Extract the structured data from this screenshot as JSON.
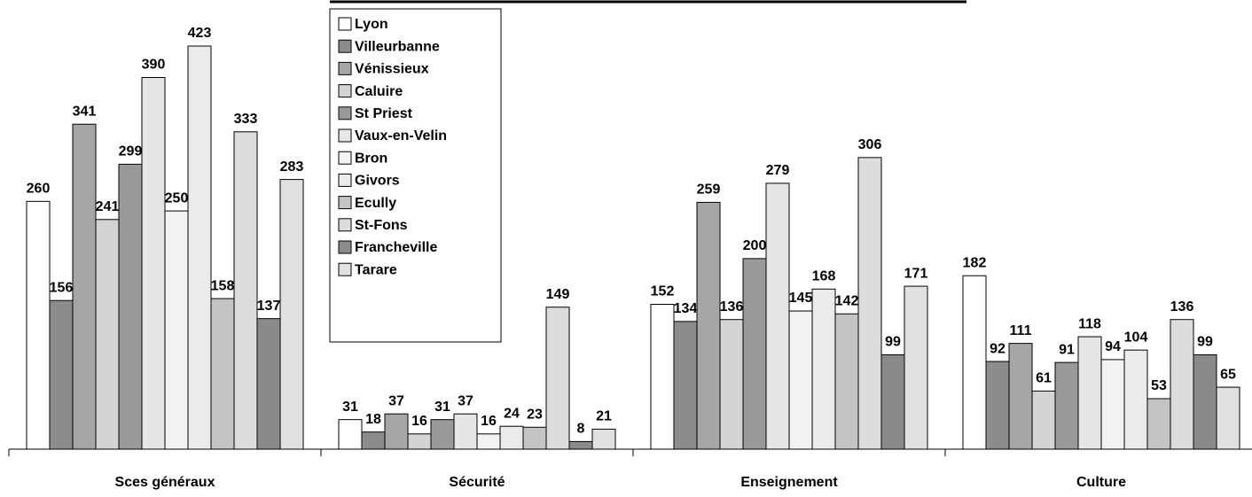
{
  "chart_data": {
    "type": "bar",
    "categories": [
      "Sces généraux",
      "Sécurité",
      "Enseignement",
      "Culture"
    ],
    "series": [
      {
        "name": "Lyon",
        "color": "#ffffff",
        "values": [
          260,
          31,
          152,
          182
        ]
      },
      {
        "name": "Villeurbanne",
        "color": "#8c8c8c",
        "values": [
          156,
          18,
          134,
          92
        ]
      },
      {
        "name": "Vénissieux",
        "color": "#a6a6a6",
        "values": [
          341,
          37,
          259,
          111
        ]
      },
      {
        "name": "Caluire",
        "color": "#d4d4d4",
        "values": [
          241,
          16,
          136,
          61
        ]
      },
      {
        "name": "St Priest",
        "color": "#999999",
        "values": [
          299,
          31,
          200,
          91
        ]
      },
      {
        "name": "Vaux-en-Velin",
        "color": "#e6e6e6",
        "values": [
          390,
          37,
          279,
          118
        ]
      },
      {
        "name": "Bron",
        "color": "#f2f2f2",
        "values": [
          250,
          16,
          145,
          94
        ]
      },
      {
        "name": "Givors",
        "color": "#ebebeb",
        "values": [
          423,
          24,
          168,
          104
        ]
      },
      {
        "name": "Ecully",
        "color": "#c4c4c4",
        "values": [
          158,
          23,
          142,
          53
        ]
      },
      {
        "name": "St-Fons",
        "color": "#dddddd",
        "values": [
          333,
          149,
          306,
          136
        ]
      },
      {
        "name": "Francheville",
        "color": "#8a8a8a",
        "values": [
          137,
          8,
          99,
          99
        ]
      },
      {
        "name": "Tarare",
        "color": "#e0e0e0",
        "values": [
          283,
          21,
          171,
          65
        ]
      }
    ]
  }
}
